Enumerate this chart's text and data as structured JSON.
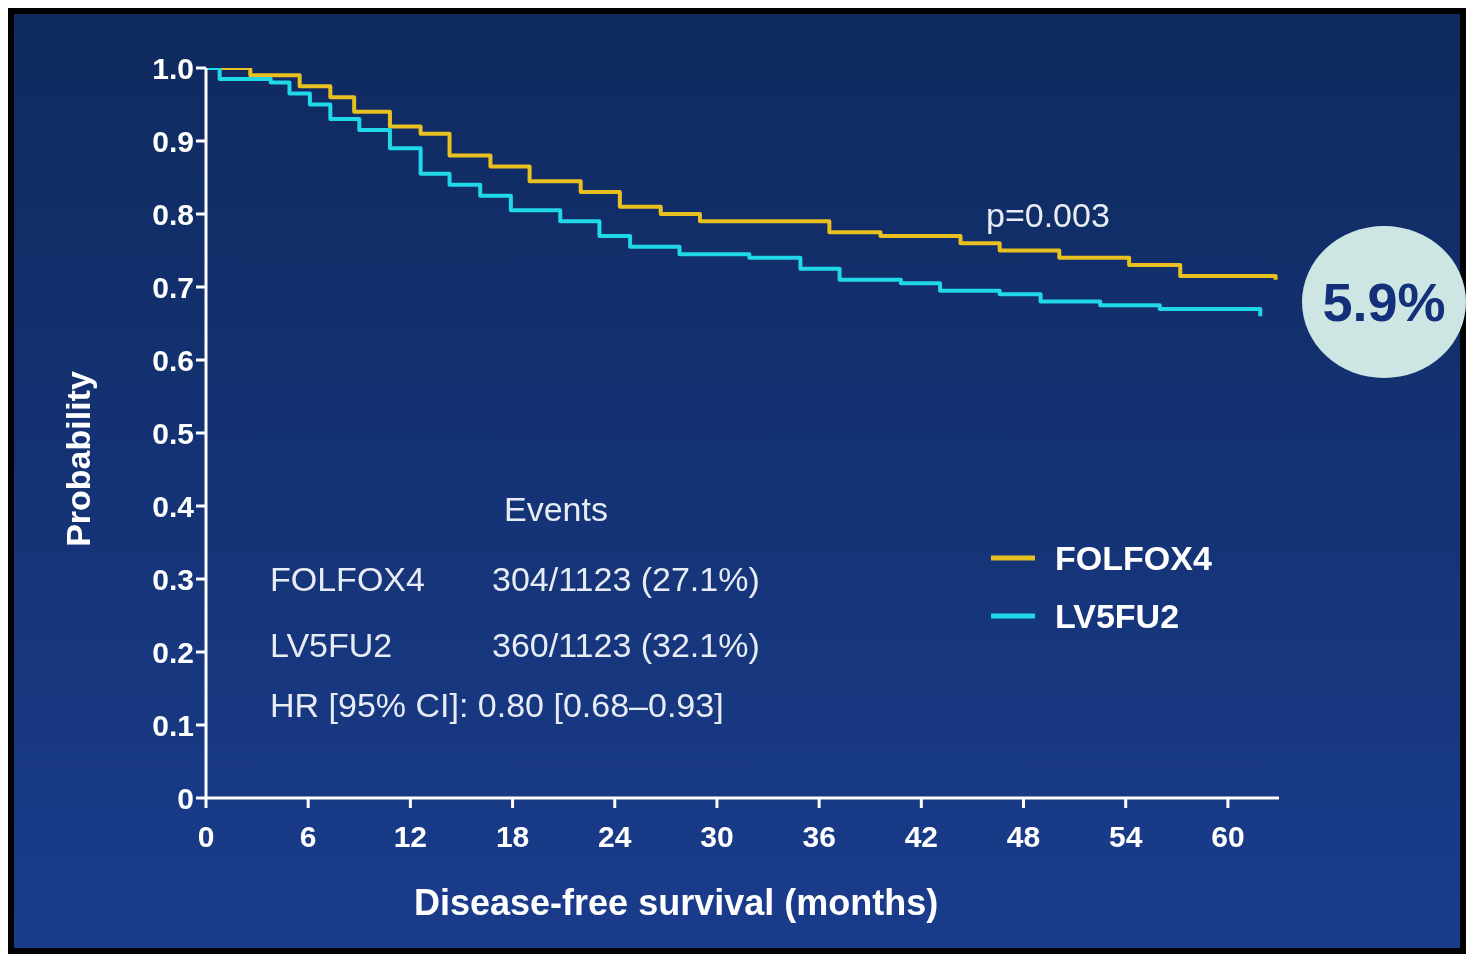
{
  "chart_data": {
    "type": "step",
    "xlabel": "Disease-free survival (months)",
    "ylabel": "Probability",
    "xlim": [
      0,
      63
    ],
    "xticks": [
      0,
      6,
      12,
      18,
      24,
      30,
      36,
      42,
      48,
      54,
      60
    ],
    "ylim": [
      0,
      1
    ],
    "yticks": [
      0,
      0.1,
      0.2,
      0.3,
      0.4,
      0.5,
      0.6,
      0.7,
      0.8,
      0.9,
      {
        "value": 1,
        "label": "1.0"
      }
    ],
    "legend": "right",
    "marker": "none",
    "line_style": "solid",
    "series": [
      {
        "name": "FOLFOX4",
        "color": "#e8c020",
        "x": [
          0,
          2.6,
          5.5,
          7.3,
          8.7,
          10.8,
          12.6,
          14.3,
          16.7,
          19,
          22,
          24.3,
          26.7,
          29,
          33.7,
          36.6,
          39.6,
          44.3,
          46.6,
          50.1,
          54.2,
          57.2,
          62.8
        ],
        "values": [
          1,
          0.99,
          0.975,
          0.96,
          0.94,
          0.92,
          0.91,
          0.88,
          0.865,
          0.845,
          0.83,
          0.81,
          0.8,
          0.79,
          0.79,
          0.775,
          0.77,
          0.76,
          0.75,
          0.74,
          0.73,
          0.715,
          0.71
        ]
      },
      {
        "name": "LV5FU2",
        "color": "#20d8e8",
        "x": [
          0,
          0.8,
          3.8,
          4.9,
          6.1,
          7.3,
          9,
          10.8,
          12.6,
          14.3,
          16.1,
          17.9,
          20.8,
          23.1,
          24.9,
          27.8,
          31.9,
          34.9,
          37.2,
          40.8,
          43.1,
          46.6,
          49,
          52.5,
          56,
          60.7,
          61.9
        ],
        "values": [
          1,
          0.985,
          0.98,
          0.965,
          0.95,
          0.93,
          0.915,
          0.89,
          0.855,
          0.84,
          0.825,
          0.805,
          0.79,
          0.77,
          0.755,
          0.745,
          0.74,
          0.725,
          0.71,
          0.705,
          0.695,
          0.69,
          0.68,
          0.675,
          0.67,
          0.67,
          0.66
        ]
      }
    ],
    "annotations": [
      "p=0.003",
      "5.9%",
      "Events",
      "FOLFOX4",
      "304/1123 (27.1%)",
      "LV5FU2",
      "360/1123 (32.1%)",
      "HR [95% CI]: 0.80 [0.68–0.93]"
    ]
  }
}
